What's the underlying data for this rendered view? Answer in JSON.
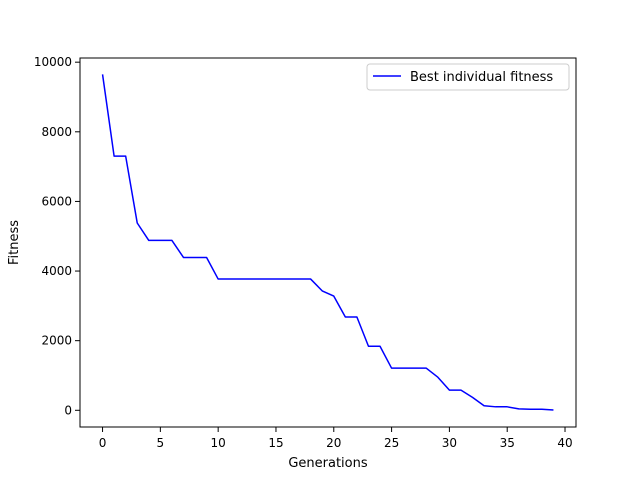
{
  "chart_data": {
    "type": "line",
    "title": "",
    "xlabel": "Generations",
    "ylabel": "Fitness",
    "xlim": [
      -1.95,
      40.95
    ],
    "ylim": [
      -480,
      10120
    ],
    "xticks": [
      0,
      5,
      10,
      15,
      20,
      25,
      30,
      35,
      40
    ],
    "yticks": [
      0,
      2000,
      4000,
      6000,
      8000,
      10000
    ],
    "grid": false,
    "legend": {
      "position": "top-right",
      "entries": [
        "Best individual fitness"
      ]
    },
    "series": [
      {
        "name": "Best individual fitness",
        "color": "#0000ff",
        "x": [
          0,
          1,
          2,
          3,
          4,
          5,
          6,
          7,
          8,
          9,
          10,
          11,
          12,
          13,
          14,
          15,
          16,
          17,
          18,
          19,
          20,
          21,
          22,
          23,
          24,
          25,
          26,
          27,
          28,
          29,
          30,
          31,
          32,
          33,
          34,
          35,
          36,
          37,
          38,
          39
        ],
        "y": [
          9650,
          7300,
          7300,
          5380,
          4880,
          4880,
          4880,
          4390,
          4390,
          4390,
          3770,
          3770,
          3770,
          3770,
          3770,
          3770,
          3770,
          3770,
          3770,
          3430,
          3280,
          2680,
          2680,
          1840,
          1840,
          1210,
          1210,
          1210,
          1210,
          950,
          580,
          580,
          370,
          130,
          100,
          100,
          40,
          30,
          30,
          10
        ]
      }
    ]
  }
}
